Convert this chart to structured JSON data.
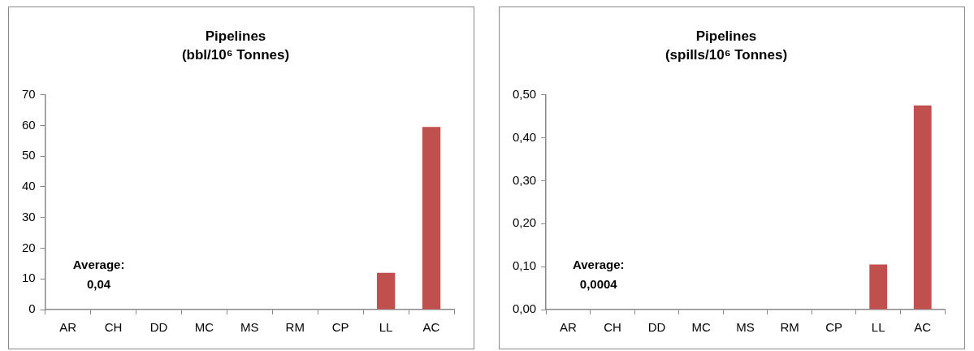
{
  "chart_data": [
    {
      "type": "bar",
      "title": [
        "Pipelines",
        "(bbl/10⁶ Tonnes)"
      ],
      "categories": [
        "AR",
        "CH",
        "DD",
        "MC",
        "MS",
        "RM",
        "CP",
        "LL",
        "AC"
      ],
      "values": [
        0,
        0,
        0,
        0,
        0,
        0,
        0,
        12,
        59.5
      ],
      "color": "#c0504d",
      "ylim": [
        0,
        70
      ],
      "yticks": [
        0,
        10,
        20,
        30,
        40,
        50,
        60,
        70
      ],
      "grid": false,
      "legend": false,
      "annotations": [
        "Average:\n0,04"
      ]
    },
    {
      "type": "bar",
      "title": [
        "Pipelines",
        "(spills/10⁶ Tonnes)"
      ],
      "categories": [
        "AR",
        "CH",
        "DD",
        "MC",
        "MS",
        "RM",
        "CP",
        "LL",
        "AC"
      ],
      "values": [
        0,
        0,
        0,
        0,
        0,
        0,
        0,
        0.105,
        0.475
      ],
      "color": "#c0504d",
      "ylim": [
        0,
        0.5
      ],
      "yticks": [
        {
          "value": 0,
          "label": "0,00"
        },
        {
          "value": 0.1,
          "label": "0,10"
        },
        {
          "value": 0.2,
          "label": "0,20"
        },
        {
          "value": 0.3,
          "label": "0,30"
        },
        {
          "value": 0.4,
          "label": "0,40"
        },
        {
          "value": 0.5,
          "label": "0,50"
        }
      ],
      "grid": false,
      "legend": false,
      "annotations": [
        "Average:\n0,0004"
      ]
    }
  ]
}
